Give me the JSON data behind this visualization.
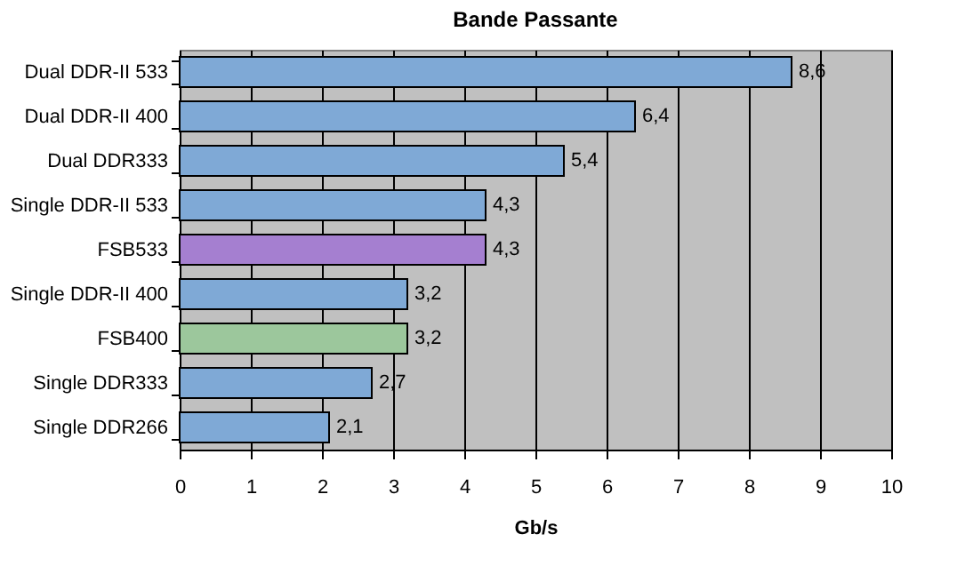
{
  "chart_data": {
    "type": "bar",
    "orientation": "horizontal",
    "title": "Bande Passante",
    "xlabel": "Gb/s",
    "categories": [
      "Dual DDR-II 533",
      "Dual DDR-II 400",
      "Dual DDR333",
      "Single DDR-II 533",
      "FSB533",
      "Single DDR-II 400",
      "FSB400",
      "Single DDR333",
      "Single DDR266"
    ],
    "values": [
      8.6,
      6.4,
      5.4,
      4.3,
      4.3,
      3.2,
      3.2,
      2.7,
      2.1
    ],
    "value_labels": [
      "8,6",
      "6,4",
      "5,4",
      "4,3",
      "4,3",
      "3,2",
      "3,2",
      "2,7",
      "2,1"
    ],
    "colors": [
      "#7fa9d6",
      "#7fa9d6",
      "#7fa9d6",
      "#7fa9d6",
      "#a57fd0",
      "#7fa9d6",
      "#9cc79c",
      "#7fa9d6",
      "#7fa9d6"
    ],
    "xlim": [
      0,
      10
    ],
    "xticks": [
      0,
      1,
      2,
      3,
      4,
      5,
      6,
      7,
      8,
      9,
      10
    ],
    "grid": "x"
  }
}
